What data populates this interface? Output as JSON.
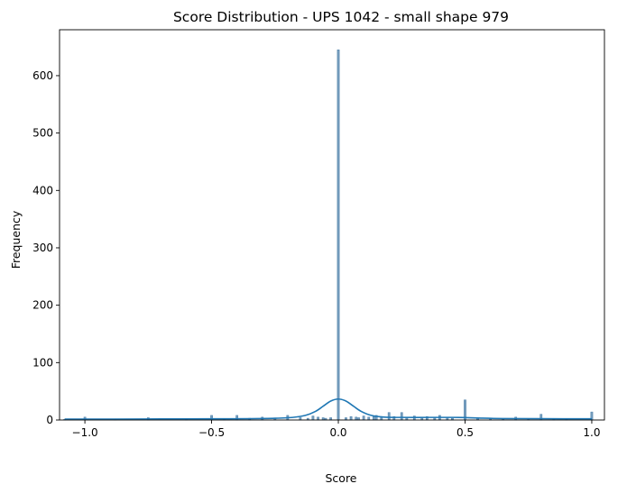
{
  "chart_data": {
    "type": "bar",
    "title": "Score Distribution - UPS 1042 - small shape 979",
    "xlabel": "Score",
    "ylabel": "Frequency",
    "xlim": [
      -1.1,
      1.05
    ],
    "ylim": [
      0,
      680
    ],
    "xticks": [
      -1.0,
      -0.5,
      0.0,
      0.5,
      1.0
    ],
    "xtick_labels": [
      "−1.0",
      "−0.5",
      "0.0",
      "0.5",
      "1.0"
    ],
    "yticks": [
      0,
      100,
      200,
      300,
      400,
      500,
      600
    ],
    "ytick_labels": [
      "0",
      "100",
      "200",
      "300",
      "400",
      "500",
      "600"
    ],
    "grid": false,
    "legend": "none",
    "bar_color": "#4a7ea8",
    "line_color": "#1f77b4",
    "series": [
      {
        "kind": "histogram",
        "bin_width": 0.01,
        "bins": [
          {
            "x": -1.08,
            "count": 1
          },
          {
            "x": -1.0,
            "count": 5
          },
          {
            "x": -0.88,
            "count": 2
          },
          {
            "x": -0.75,
            "count": 4
          },
          {
            "x": -0.6,
            "count": 2
          },
          {
            "x": -0.5,
            "count": 8
          },
          {
            "x": -0.45,
            "count": 2
          },
          {
            "x": -0.4,
            "count": 8
          },
          {
            "x": -0.35,
            "count": 3
          },
          {
            "x": -0.3,
            "count": 5
          },
          {
            "x": -0.25,
            "count": 3
          },
          {
            "x": -0.2,
            "count": 8
          },
          {
            "x": -0.15,
            "count": 4
          },
          {
            "x": -0.12,
            "count": 3
          },
          {
            "x": -0.1,
            "count": 7
          },
          {
            "x": -0.08,
            "count": 5
          },
          {
            "x": -0.06,
            "count": 4
          },
          {
            "x": -0.05,
            "count": 3
          },
          {
            "x": -0.03,
            "count": 4
          },
          {
            "x": 0.0,
            "count": 645
          },
          {
            "x": 0.03,
            "count": 4
          },
          {
            "x": 0.05,
            "count": 6
          },
          {
            "x": 0.07,
            "count": 5
          },
          {
            "x": 0.08,
            "count": 4
          },
          {
            "x": 0.1,
            "count": 7
          },
          {
            "x": 0.12,
            "count": 5
          },
          {
            "x": 0.14,
            "count": 6
          },
          {
            "x": 0.15,
            "count": 8
          },
          {
            "x": 0.17,
            "count": 6
          },
          {
            "x": 0.2,
            "count": 13
          },
          {
            "x": 0.22,
            "count": 6
          },
          {
            "x": 0.25,
            "count": 13
          },
          {
            "x": 0.27,
            "count": 4
          },
          {
            "x": 0.3,
            "count": 7
          },
          {
            "x": 0.33,
            "count": 5
          },
          {
            "x": 0.35,
            "count": 6
          },
          {
            "x": 0.38,
            "count": 4
          },
          {
            "x": 0.4,
            "count": 8
          },
          {
            "x": 0.43,
            "count": 4
          },
          {
            "x": 0.45,
            "count": 3
          },
          {
            "x": 0.5,
            "count": 35
          },
          {
            "x": 0.55,
            "count": 3
          },
          {
            "x": 0.6,
            "count": 2
          },
          {
            "x": 0.65,
            "count": 2
          },
          {
            "x": 0.7,
            "count": 5
          },
          {
            "x": 0.75,
            "count": 2
          },
          {
            "x": 0.8,
            "count": 10
          },
          {
            "x": 0.85,
            "count": 2
          },
          {
            "x": 0.9,
            "count": 2
          },
          {
            "x": 1.0,
            "count": 14
          }
        ]
      },
      {
        "kind": "kde",
        "x": [
          -1.08,
          -0.9,
          -0.7,
          -0.5,
          -0.35,
          -0.25,
          -0.18,
          -0.13,
          -0.09,
          -0.06,
          -0.03,
          0.0,
          0.03,
          0.06,
          0.09,
          0.13,
          0.18,
          0.25,
          0.35,
          0.45,
          0.5,
          0.55,
          0.65,
          0.8,
          1.0
        ],
        "y": [
          1.5,
          1.5,
          1.8,
          2.0,
          2.3,
          3.0,
          4.5,
          8.0,
          15.0,
          24.0,
          33.0,
          36.5,
          33.0,
          24.0,
          15.0,
          8.0,
          5.0,
          4.5,
          4.5,
          4.5,
          4.2,
          3.5,
          2.5,
          2.2,
          2.0
        ]
      }
    ]
  }
}
